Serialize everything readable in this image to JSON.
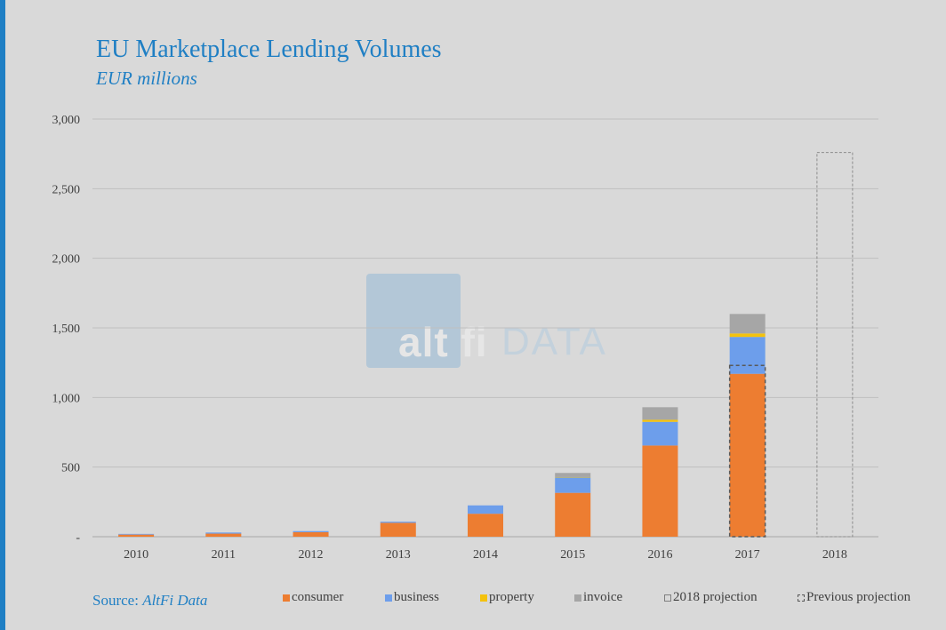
{
  "title": "EU Marketplace Lending Volumes",
  "subtitle": "EUR millions",
  "source_prefix": "Source: ",
  "source_name": "AltFi Data",
  "watermark": {
    "logo_alt": "alt",
    "logo_fi": "fi",
    "logo_data": "DATA"
  },
  "chart_data": {
    "type": "bar",
    "stacked": true,
    "categories": [
      "2010",
      "2011",
      "2012",
      "2013",
      "2014",
      "2015",
      "2016",
      "2017",
      "2018"
    ],
    "series": [
      {
        "name": "consumer",
        "color": "#ed7d31",
        "values": [
          15,
          22,
          32,
          100,
          165,
          315,
          655,
          1170,
          0
        ]
      },
      {
        "name": "business",
        "color": "#6d9eeb",
        "values": [
          5,
          8,
          8,
          8,
          60,
          110,
          170,
          265,
          0
        ]
      },
      {
        "name": "property",
        "color": "#f4c20d",
        "values": [
          0,
          0,
          0,
          0,
          0,
          3,
          15,
          25,
          0
        ]
      },
      {
        "name": "invoice",
        "color": "#a6a6a6",
        "values": [
          0,
          0,
          0,
          0,
          0,
          30,
          90,
          140,
          0
        ]
      }
    ],
    "projection_2018": {
      "name": "2018 projection",
      "category": "2018",
      "value": 2760
    },
    "previous_projection": {
      "name": "Previous projection",
      "category": "2017",
      "value": 1230
    },
    "ylim": [
      0,
      3000
    ],
    "yticks": [
      0,
      500,
      1000,
      1500,
      2000,
      2500,
      3000
    ],
    "ytick_labels": [
      "-",
      "500",
      "1,000",
      "1,500",
      "2,000",
      "2,500",
      "3,000"
    ],
    "grid": true,
    "legend_position": "bottom",
    "xlabel": "",
    "ylabel": ""
  }
}
